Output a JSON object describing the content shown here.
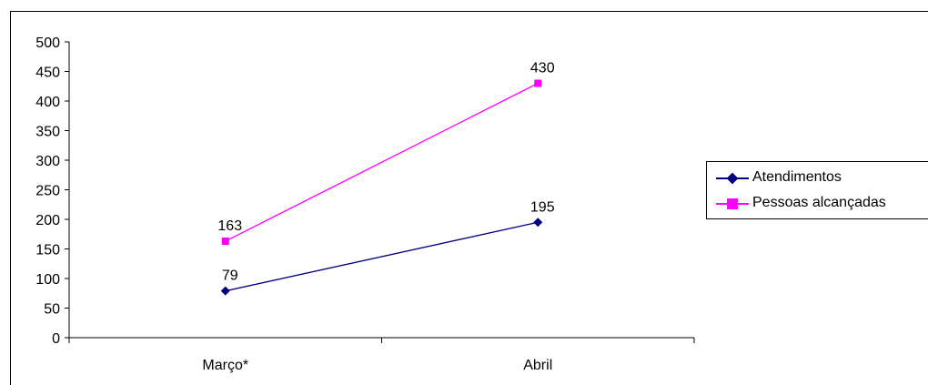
{
  "chart_data": {
    "type": "line",
    "categories": [
      "Março*",
      "Abril"
    ],
    "series": [
      {
        "name": "Atendimentos",
        "values": [
          79,
          195
        ],
        "color": "#000080",
        "marker": "diamond"
      },
      {
        "name": "Pessoas alcançadas",
        "values": [
          163,
          430
        ],
        "color": "#ff00ff",
        "marker": "square"
      }
    ],
    "ylim": [
      0,
      500
    ],
    "yticks": [
      0,
      50,
      100,
      150,
      200,
      250,
      300,
      350,
      400,
      450,
      500
    ],
    "data_labels": true,
    "grid": false,
    "legend_position": "right",
    "title": "",
    "xlabel": "",
    "ylabel": ""
  }
}
